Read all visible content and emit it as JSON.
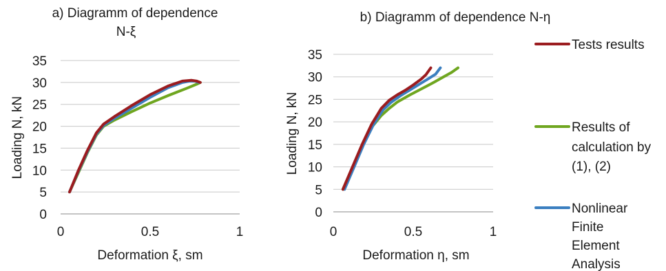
{
  "colors": {
    "tests": "#9b1c1f",
    "calc": "#6fa620",
    "fea": "#3b7fc0",
    "grid": "#c8c8c8",
    "axis": "#888888"
  },
  "legend": [
    {
      "series": "tests",
      "lines": [
        "Tests results"
      ]
    },
    {
      "series": "calc",
      "lines": [
        "Results of",
        "calculation by",
        "(1), (2)"
      ]
    },
    {
      "series": "fea",
      "lines": [
        "Nonlinear",
        "Finite",
        "Element",
        "Analysis"
      ]
    }
  ],
  "chart_data": [
    {
      "type": "line",
      "title_lines": [
        "a)  Diagramm of dependence",
        "N-ξ"
      ],
      "xlabel": "Deformation ξ, sm",
      "ylabel": "Loading N, kN",
      "xlim": [
        0,
        1
      ],
      "ylim": [
        0,
        35
      ],
      "xticks": [
        0,
        0.5,
        1
      ],
      "yticks": [
        0,
        5,
        10,
        15,
        20,
        25,
        30,
        35
      ],
      "xtick_labels": [
        "0",
        "0.5",
        "1"
      ],
      "ytick_labels": [
        "0",
        "5",
        "10",
        "15",
        "20",
        "25",
        "30",
        "35"
      ],
      "grid": true,
      "series": [
        {
          "key": "tests",
          "name": "Tests results",
          "x": [
            0.05,
            0.1,
            0.15,
            0.2,
            0.24,
            0.3,
            0.4,
            0.5,
            0.6,
            0.68,
            0.73,
            0.76,
            0.78
          ],
          "y": [
            5,
            10,
            14.5,
            18.5,
            20.5,
            22.2,
            24.8,
            27.2,
            29.2,
            30.3,
            30.5,
            30.3,
            30.0
          ]
        },
        {
          "key": "calc",
          "name": "Results of calculation by (1), (2)",
          "x": [
            0.05,
            0.1,
            0.15,
            0.2,
            0.24,
            0.3,
            0.4,
            0.5,
            0.6,
            0.7,
            0.76,
            0.78
          ],
          "y": [
            5,
            9.5,
            14,
            18,
            20,
            21.4,
            23.4,
            25.3,
            27.0,
            28.6,
            29.6,
            30.0
          ]
        },
        {
          "key": "fea",
          "name": "Nonlinear Finite Element Analysis",
          "x": [
            0.05,
            0.1,
            0.15,
            0.2,
            0.24,
            0.3,
            0.4,
            0.5,
            0.6,
            0.68,
            0.72,
            0.75,
            0.77
          ],
          "y": [
            5,
            9.8,
            14.2,
            18.2,
            20.2,
            21.8,
            24.2,
            26.6,
            28.8,
            30.0,
            30.3,
            30.3,
            30.0
          ]
        }
      ]
    },
    {
      "type": "line",
      "title_lines": [
        "b) Diagramm of dependence N-η"
      ],
      "xlabel": "Deformation η, sm",
      "ylabel": "Loading  N, kN",
      "xlim": [
        0,
        1
      ],
      "ylim": [
        0,
        35
      ],
      "xticks": [
        0,
        0.5,
        1
      ],
      "yticks": [
        0,
        5,
        10,
        15,
        20,
        25,
        30,
        35
      ],
      "xtick_labels": [
        "0",
        "0.5",
        "1"
      ],
      "ytick_labels": [
        "0",
        "5",
        "10",
        "15",
        "20",
        "25",
        "30",
        "35"
      ],
      "grid": true,
      "series": [
        {
          "key": "tests",
          "name": "Tests results",
          "x": [
            0.06,
            0.12,
            0.18,
            0.24,
            0.3,
            0.35,
            0.4,
            0.45,
            0.5,
            0.55,
            0.58,
            0.61
          ],
          "y": [
            5,
            10,
            15,
            19.5,
            23,
            24.8,
            26.0,
            27.0,
            28.2,
            29.5,
            30.5,
            32
          ]
        },
        {
          "key": "calc",
          "name": "Results of calculation by (1), (2)",
          "x": [
            0.06,
            0.12,
            0.18,
            0.24,
            0.3,
            0.35,
            0.4,
            0.48,
            0.55,
            0.62,
            0.68,
            0.74,
            0.78
          ],
          "y": [
            5,
            9.8,
            14.6,
            18.8,
            21.4,
            23.0,
            24.4,
            26.0,
            27.3,
            28.6,
            29.8,
            31.0,
            32
          ]
        },
        {
          "key": "fea",
          "name": "Nonlinear Finite Element Analysis",
          "x": [
            0.07,
            0.13,
            0.19,
            0.25,
            0.31,
            0.36,
            0.42,
            0.48,
            0.54,
            0.6,
            0.64,
            0.67
          ],
          "y": [
            5,
            10,
            15,
            19.3,
            22.6,
            24.3,
            25.8,
            27.1,
            28.4,
            29.7,
            30.6,
            32
          ]
        }
      ]
    }
  ]
}
